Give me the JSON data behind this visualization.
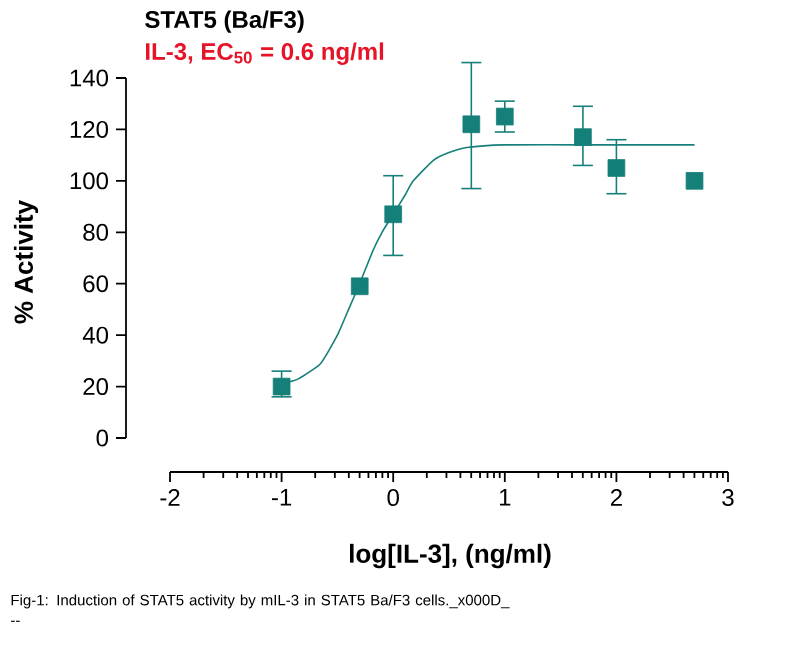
{
  "chart_data": {
    "type": "scatter",
    "title": "STAT5 (Ba/F3)",
    "subtitle": "IL-3, EC$_{50}$ = 0.6 ng/ml",
    "xlabel": "log[IL-3], (ng/ml)",
    "ylabel": "% Activity",
    "annotations": [
      "Fig-1: Induction of STAT5 activity by mIL-3 in STAT5 Ba/F3 cells._x000D_ --"
    ],
    "xlim": [
      -2,
      3
    ],
    "ylim": [
      0,
      140
    ],
    "xticks": [
      -2,
      -1,
      0,
      1,
      2,
      3
    ],
    "yticks": [
      0,
      20,
      40,
      60,
      80,
      100,
      120,
      140
    ],
    "grid": false,
    "marker": "square",
    "series": [
      {
        "color": "#157f79",
        "x": [
          -1,
          -0.3,
          0,
          0.7,
          1,
          1.7,
          2,
          2.7
        ],
        "values": [
          20,
          59,
          87,
          122,
          125,
          117,
          105,
          100
        ],
        "errors": [
          [
            16,
            26
          ],
          null,
          [
            71,
            102
          ],
          [
            97,
            146
          ],
          [
            119,
            131
          ],
          [
            106,
            129
          ],
          [
            95,
            116
          ],
          null
        ]
      },
      {
        "type": "line",
        "color": "#157f79",
        "marker": "none",
        "x": [
          -1,
          -0.85,
          -0.65,
          -0.5,
          -0.4,
          -0.31,
          -0.18,
          -0.1,
          0,
          0.1,
          0.18,
          0.36,
          0.5,
          0.66,
          1,
          1.7,
          2.7
        ],
        "values": [
          21,
          23,
          29,
          40,
          50,
          59,
          73,
          80,
          87,
          94,
          100,
          108,
          111,
          113,
          114,
          114,
          114
        ]
      }
    ]
  }
}
